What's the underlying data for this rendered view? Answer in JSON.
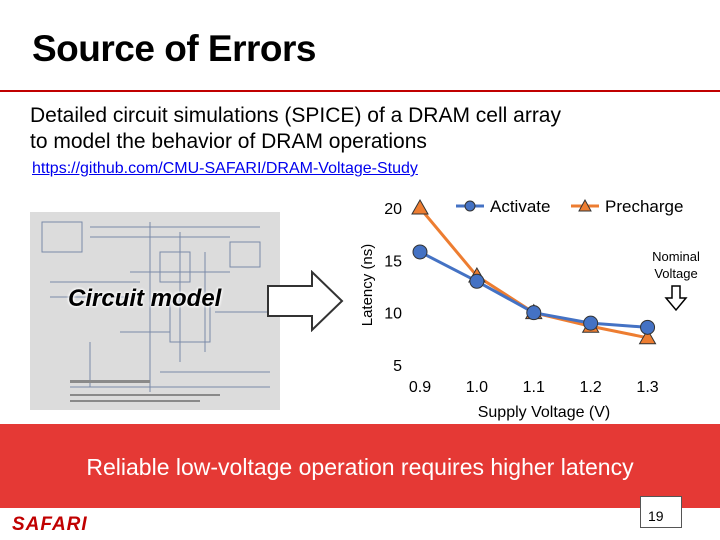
{
  "slide": {
    "title": "Source of Errors",
    "description_line1": "Detailed circuit simulations (SPICE) of a DRAM cell array",
    "description_line2": "to model the behavior of DRAM operations",
    "link": "https://github.com/CMU-SAFARI/DRAM-Voltage-Study",
    "circuit_label": "Circuit model",
    "banner": "Reliable low-voltage operation requires higher latency",
    "footer_logo": "SAFARI",
    "page_number": "19",
    "colors": {
      "accent_red": "#e53935",
      "title_rule": "#c00000",
      "activate": "#4472c4",
      "precharge": "#ed7d31"
    }
  },
  "chart_data": {
    "type": "line",
    "x": [
      0.9,
      1.0,
      1.1,
      1.2,
      1.3,
      1.35
    ],
    "xticks": [
      "0.9",
      "1.0",
      "1.1",
      "1.2",
      "1.3"
    ],
    "series": [
      {
        "name": "Activate",
        "values": [
          15.8,
          13.0,
          10.0,
          9.0,
          8.6,
          null
        ],
        "marker": "circle",
        "color": "#4472c4"
      },
      {
        "name": "Precharge",
        "values": [
          20.0,
          13.5,
          10.0,
          8.7,
          7.6,
          null
        ],
        "marker": "triangle",
        "color": "#ed7d31"
      }
    ],
    "yticks": [
      "5",
      "10",
      "15",
      "20"
    ],
    "ylim": [
      5,
      20
    ],
    "xlabel": "Supply Voltage (V)",
    "ylabel": "Latency (ns)",
    "annotation": {
      "line1": "Nominal",
      "line2": "Voltage"
    },
    "legend_position": "top-right",
    "grid": false
  }
}
